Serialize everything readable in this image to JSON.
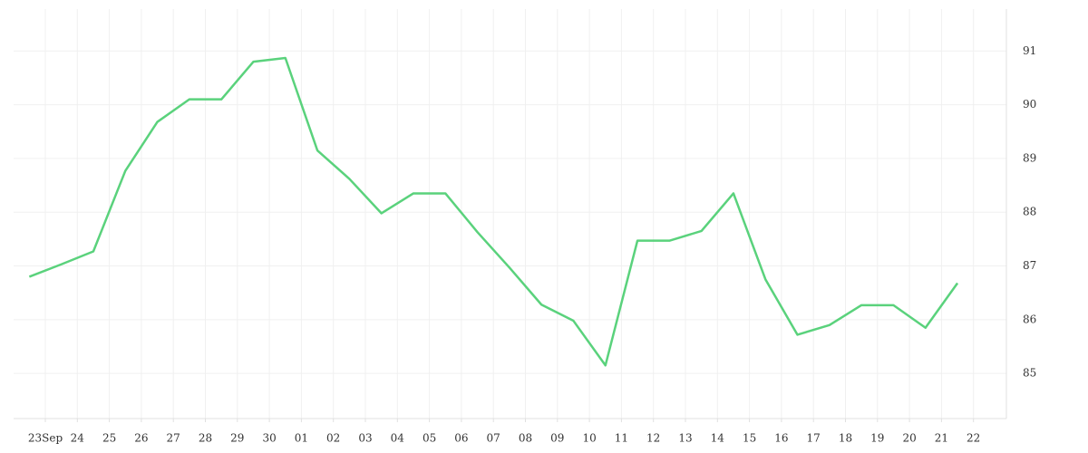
{
  "chart_data": {
    "type": "line",
    "categories": [
      "23Sep",
      "24",
      "25",
      "26",
      "27",
      "28",
      "29",
      "30",
      "01",
      "02",
      "03",
      "04",
      "05",
      "06",
      "07",
      "08",
      "09",
      "10",
      "11",
      "12",
      "13",
      "14",
      "15",
      "16",
      "17",
      "18",
      "19",
      "20",
      "21",
      "22"
    ],
    "series": [
      {
        "color": "#5ad27c",
        "values": [
          86.8,
          87.03,
          87.27,
          88.77,
          89.68,
          90.1,
          90.1,
          90.8,
          90.87,
          89.15,
          88.62,
          87.98,
          88.35,
          88.35,
          87.63,
          86.97,
          86.28,
          85.98,
          85.15,
          87.47,
          87.47,
          87.65,
          88.35,
          86.75,
          85.72,
          85.9,
          86.27,
          86.27,
          85.85,
          86.68
        ]
      }
    ],
    "ylim": [
      84.16,
      91.78
    ],
    "yticks": [
      85,
      86,
      87,
      88,
      89,
      90,
      91
    ],
    "grid": true
  }
}
